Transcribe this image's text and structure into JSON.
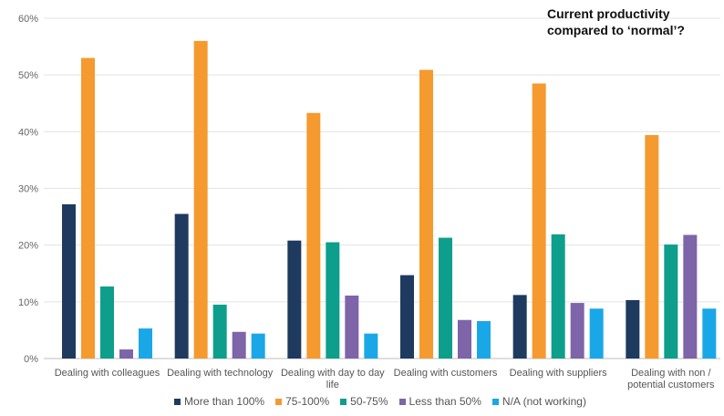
{
  "chart_data": {
    "type": "bar",
    "title_lines": [
      "Current productivity",
      "compared to ‘normal’?"
    ],
    "categories": [
      [
        "Dealing with colleagues"
      ],
      [
        "Dealing with technology"
      ],
      [
        "Dealing with day to day",
        "life"
      ],
      [
        "Dealing with customers"
      ],
      [
        "Dealing with suppliers"
      ],
      [
        "Dealing with non /",
        "potential customers"
      ]
    ],
    "series": [
      {
        "name": "More than 100%",
        "color": "#1f3a5f",
        "values": [
          27.2,
          25.5,
          20.8,
          14.7,
          11.2,
          10.3
        ]
      },
      {
        "name": "75-100%",
        "color": "#f59a2f",
        "values": [
          53.0,
          56.0,
          43.3,
          50.9,
          48.5,
          39.4
        ]
      },
      {
        "name": "50-75%",
        "color": "#0e9e8c",
        "values": [
          12.7,
          9.5,
          20.5,
          21.3,
          21.9,
          20.1
        ]
      },
      {
        "name": "Less than 50%",
        "color": "#7e64a8",
        "values": [
          1.6,
          4.7,
          11.1,
          6.8,
          9.8,
          21.8
        ]
      },
      {
        "name": "N/A (not working)",
        "color": "#1aa7e8",
        "values": [
          5.3,
          4.4,
          4.4,
          6.6,
          8.8,
          8.8
        ]
      }
    ],
    "ylim": [
      0,
      60
    ],
    "yticks": [
      0,
      10,
      20,
      30,
      40,
      50,
      60
    ],
    "ytick_suffix": "%",
    "grid": true,
    "legend_position": "bottom"
  }
}
